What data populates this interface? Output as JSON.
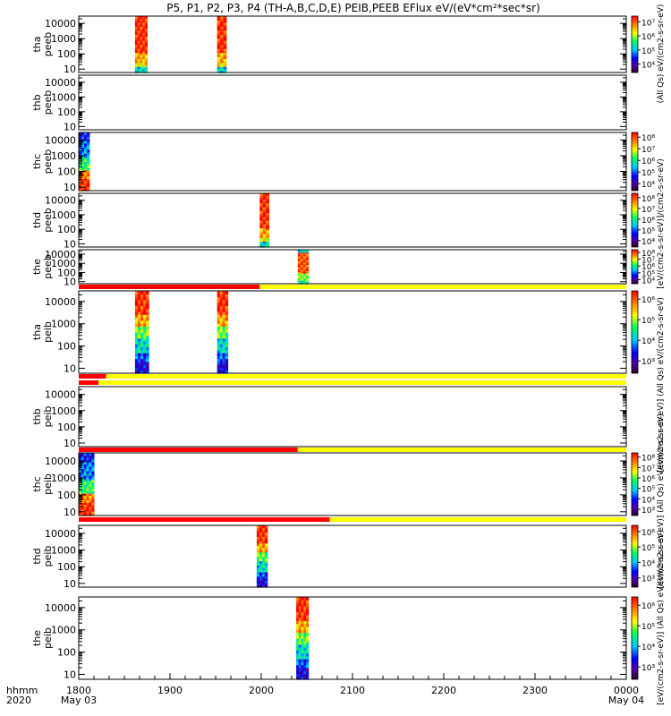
{
  "chart_data": {
    "type": "heatmap",
    "title": "P5, P1, P2, P3, P4 (TH-A,B,C,D,E) PEIB,PEEB EFlux eV/(eV*cm²*sec*sr)",
    "time_axis": {
      "row_label_1": "hhmm",
      "row_label_2": "2020",
      "range_minutes": [
        0,
        360
      ],
      "ticks": [
        {
          "t": 0,
          "label": "1800",
          "date": "May 03"
        },
        {
          "t": 60,
          "label": "1900",
          "date": ""
        },
        {
          "t": 120,
          "label": "2000",
          "date": ""
        },
        {
          "t": 180,
          "label": "2100",
          "date": ""
        },
        {
          "t": 240,
          "label": "2200",
          "date": ""
        },
        {
          "t": 300,
          "label": "2300",
          "date": ""
        },
        {
          "t": 360,
          "label": "0000",
          "date": "May 04"
        }
      ]
    },
    "energy_ticks": [
      "10",
      "100",
      "1000",
      "10000"
    ],
    "energy_tick_values": [
      10,
      100,
      1000,
      10000
    ],
    "energy_range_ev": [
      6,
      30000
    ],
    "panels": [
      {
        "ylabel": [
          "tha",
          "peeb"
        ],
        "bursts": [
          [
            37,
            45
          ],
          [
            91,
            97
          ]
        ],
        "colors": "hot-top",
        "cbar": "a",
        "flag": null
      },
      {
        "ylabel": [
          "thb",
          "peeb"
        ],
        "bursts": [],
        "colors": "",
        "cbar": "none",
        "flag": null
      },
      {
        "ylabel": [
          "thc",
          "peeb"
        ],
        "bursts": [
          [
            0,
            7
          ]
        ],
        "colors": "cool-top",
        "cbar": "b",
        "flag": null
      },
      {
        "ylabel": [
          "thd",
          "peeb"
        ],
        "bursts": [
          [
            119,
            125
          ]
        ],
        "colors": "hot-top",
        "cbar": "b",
        "flag": null
      },
      {
        "ylabel": [
          "the",
          "peeb"
        ],
        "bursts": [
          [
            144,
            151
          ]
        ],
        "colors": "hot-mid",
        "cbar": "b",
        "flag": 119
      },
      {
        "ylabel": [
          "tha",
          "peib"
        ],
        "bursts": [
          [
            37,
            46
          ],
          [
            91,
            98
          ]
        ],
        "colors": "ion",
        "cbar": "c",
        "flag": 18
      },
      {
        "ylabel": [
          "thb",
          "peib"
        ],
        "bursts": [],
        "colors": "",
        "cbar": "none",
        "flag": 13
      },
      {
        "ylabel": [
          "thc",
          "peib"
        ],
        "bursts": [
          [
            0,
            10
          ]
        ],
        "colors": "cool-top",
        "cbar": "d",
        "flag": 144
      },
      {
        "ylabel": [
          "thd",
          "peib"
        ],
        "bursts": [
          [
            117,
            124
          ]
        ],
        "colors": "ion",
        "cbar": "c",
        "flag": 165
      },
      {
        "ylabel": [
          "the",
          "peib"
        ],
        "bursts": [
          [
            143,
            151
          ]
        ],
        "colors": "ion",
        "cbar": "c",
        "flag": null
      }
    ],
    "colorbars": {
      "a": [
        "10⁴",
        "10⁵",
        "10⁶",
        "10⁷"
      ],
      "b": [
        "10⁴",
        "10⁵",
        "10⁶",
        "10⁷",
        "10⁸"
      ],
      "c": [
        "10³",
        "10⁴",
        "10⁵",
        "10⁶"
      ],
      "d": [
        "10³",
        "10⁴",
        "10⁵",
        "10⁶",
        "10⁷",
        "10⁸"
      ]
    },
    "right_labels": [
      "(All Qs) eV/(cm2-s-sr-eV)",
      "[eV/(cm2-s-sr-eV)]/(cm2-s-sr-eV)",
      "[eV/(cm2-s-sr-eV)] (All Qs) eV/(cm2-s-sr-eV)",
      "[eV/(cm2-s-sr-eV)] (All Qs) eV/(cm2-s-sr-eV)",
      "[eV/(cm2-s-sr-eV)] (All Qs) eV/(cm2-s-sr-eV)"
    ],
    "colors": {
      "flag_red": "#ff0000",
      "flag_yellow": "#ffff00"
    }
  }
}
